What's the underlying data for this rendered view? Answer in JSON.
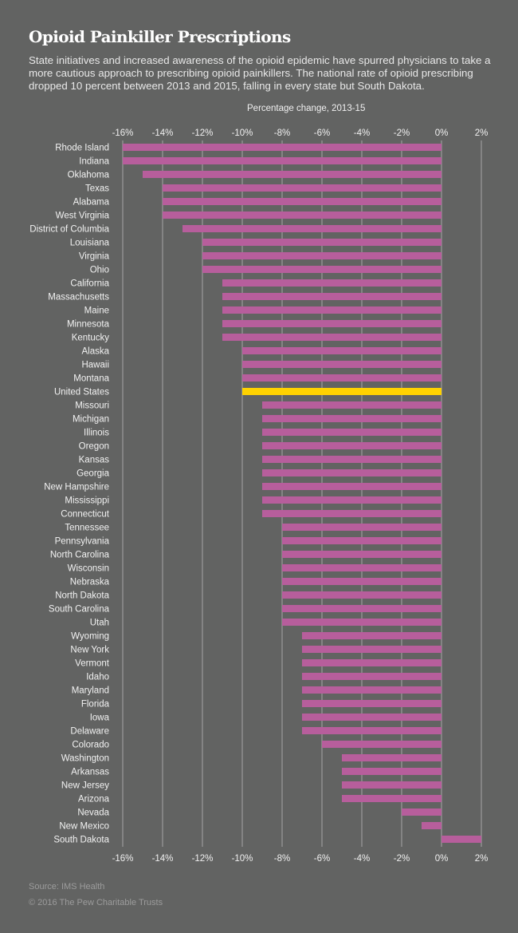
{
  "header": {
    "title": "Opioid Painkiller Prescriptions",
    "subtitle": "State initiatives and increased awareness of the opioid epidemic have spurred physicians to take a more cautious approach to prescribing opioid painkillers. The national rate of opioid prescribing dropped 10 percent between 2013 and 2015, falling in every state but South Dakota."
  },
  "footer": {
    "source": "Source: IMS Health",
    "credit": "© 2016 The Pew Charitable Trusts"
  },
  "colors": {
    "background": "#626362",
    "bar": "#b75e9c",
    "highlight": "#ffd200",
    "grid": "#9a9a9a",
    "text": "#ffffff"
  },
  "chart_data": {
    "type": "bar",
    "orientation": "horizontal",
    "title": "Opioid Painkiller Prescriptions",
    "xlabel": "Percentage change, 2013-15",
    "ylabel": "",
    "xlim": [
      -16,
      2
    ],
    "xticks": [
      -16,
      -14,
      -12,
      -10,
      -8,
      -6,
      -4,
      -2,
      0,
      2
    ],
    "xtick_labels": [
      "-16%",
      "-14%",
      "-12%",
      "-10%",
      "-8%",
      "-6%",
      "-4%",
      "-2%",
      "0%",
      "2%"
    ],
    "grid": true,
    "highlight_category": "United States",
    "categories": [
      "Rhode Island",
      "Indiana",
      "Oklahoma",
      "Texas",
      "Alabama",
      "West Virginia",
      "District of Columbia",
      "Louisiana",
      "Virginia",
      "Ohio",
      "California",
      "Massachusetts",
      "Maine",
      "Minnesota",
      "Kentucky",
      "Alaska",
      "Hawaii",
      "Montana",
      "United States",
      "Missouri",
      "Michigan",
      "Illinois",
      "Oregon",
      "Kansas",
      "Georgia",
      "New Hampshire",
      "Mississippi",
      "Connecticut",
      "Tennessee",
      "Pennsylvania",
      "North Carolina",
      "Wisconsin",
      "Nebraska",
      "North Dakota",
      "South Carolina",
      "Utah",
      "Wyoming",
      "New York",
      "Vermont",
      "Idaho",
      "Maryland",
      "Florida",
      "Iowa",
      "Delaware",
      "Colorado",
      "Washington",
      "Arkansas",
      "New Jersey",
      "Arizona",
      "Nevada",
      "New Mexico",
      "South Dakota"
    ],
    "values": [
      -16,
      -16,
      -15,
      -14,
      -14,
      -14,
      -13,
      -12,
      -12,
      -12,
      -11,
      -11,
      -11,
      -11,
      -11,
      -10,
      -10,
      -10,
      -10,
      -9,
      -9,
      -9,
      -9,
      -9,
      -9,
      -9,
      -9,
      -9,
      -8,
      -8,
      -8,
      -8,
      -8,
      -8,
      -8,
      -8,
      -7,
      -7,
      -7,
      -7,
      -7,
      -7,
      -7,
      -7,
      -6,
      -5,
      -5,
      -5,
      -5,
      -2,
      -1,
      2
    ]
  }
}
